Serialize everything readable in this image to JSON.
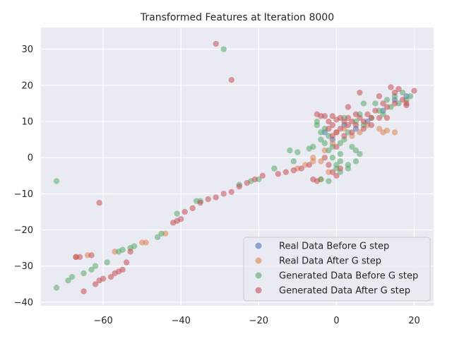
{
  "chart_data": {
    "type": "scatter",
    "title": "Transformed Features at Iteration 8000",
    "xlabel": "",
    "ylabel": "",
    "xlim": [
      -76,
      25
    ],
    "ylim": [
      -41,
      36
    ],
    "xticks": [
      -60,
      -40,
      -20,
      0,
      20
    ],
    "xtick_labels": [
      "−60",
      "−40",
      "−20",
      "0",
      "20"
    ],
    "yticks": [
      -40,
      -30,
      -20,
      -10,
      0,
      10,
      20,
      30
    ],
    "ytick_labels": [
      "−40",
      "−30",
      "−20",
      "−10",
      "0",
      "10",
      "20",
      "30"
    ],
    "grid": true,
    "legend_position": "lower-right",
    "plot_background": "#eaeaf2",
    "series": [
      {
        "name": "Real Data Before G step",
        "color": "#4c72b0",
        "points": [
          [
            -3,
            7
          ],
          [
            -1,
            5
          ],
          [
            2,
            9
          ],
          [
            5,
            8
          ],
          [
            8,
            10
          ],
          [
            12,
            13
          ],
          [
            15,
            16
          ],
          [
            18,
            17
          ]
        ]
      },
      {
        "name": "Real Data After G step",
        "color": "#dd8452",
        "points": [
          [
            -67,
            -27.5
          ],
          [
            -64,
            -27
          ],
          [
            -57,
            -26
          ],
          [
            -50,
            -23.5
          ],
          [
            -49,
            -23.5
          ],
          [
            -44,
            -21
          ],
          [
            -4,
            -6
          ],
          [
            -2,
            -4
          ],
          [
            -4,
            -1
          ],
          [
            -6,
            0
          ],
          [
            -3,
            2
          ],
          [
            -1,
            4
          ],
          [
            0,
            7
          ],
          [
            2,
            8
          ],
          [
            4,
            6
          ],
          [
            6,
            7
          ],
          [
            8,
            9
          ],
          [
            11,
            8
          ],
          [
            12,
            7
          ],
          [
            13,
            7.5
          ],
          [
            15,
            7
          ],
          [
            -10,
            -3
          ],
          [
            -8,
            -2
          ],
          [
            -6,
            -1
          ]
        ]
      },
      {
        "name": "Generated Data Before G step",
        "color": "#55a868",
        "points": [
          [
            -72,
            -6.5
          ],
          [
            -72,
            -36
          ],
          [
            -69,
            -34
          ],
          [
            -68,
            -33
          ],
          [
            -65,
            -32
          ],
          [
            -63,
            -31
          ],
          [
            -62,
            -30
          ],
          [
            -59,
            -29
          ],
          [
            -56,
            -26
          ],
          [
            -55,
            -25.5
          ],
          [
            -53,
            -25
          ],
          [
            -52,
            -24.5
          ],
          [
            -46,
            -22
          ],
          [
            -45,
            -21
          ],
          [
            -41,
            -15.5
          ],
          [
            -36,
            -12
          ],
          [
            -35,
            -12
          ],
          [
            -29,
            30
          ],
          [
            -25,
            -7.5
          ],
          [
            -22,
            -6.5
          ],
          [
            -20,
            -6
          ],
          [
            -16,
            -3
          ],
          [
            -12,
            2
          ],
          [
            -11,
            -1
          ],
          [
            -10,
            1.5
          ],
          [
            -7,
            2.5
          ],
          [
            -6,
            3
          ],
          [
            -5,
            9
          ],
          [
            -5,
            10
          ],
          [
            -4,
            7
          ],
          [
            -4,
            5
          ],
          [
            -3,
            8
          ],
          [
            -3,
            4
          ],
          [
            -2,
            6
          ],
          [
            -2,
            2
          ],
          [
            -1,
            3
          ],
          [
            -1,
            0
          ],
          [
            0,
            -2
          ],
          [
            0,
            -3
          ],
          [
            1,
            1
          ],
          [
            1,
            4
          ],
          [
            1,
            -1
          ],
          [
            2,
            5
          ],
          [
            2,
            11
          ],
          [
            3,
            7
          ],
          [
            3,
            -2
          ],
          [
            4,
            3
          ],
          [
            5,
            10
          ],
          [
            5,
            2
          ],
          [
            6,
            12
          ],
          [
            7,
            9
          ],
          [
            7,
            15
          ],
          [
            9,
            11
          ],
          [
            10,
            15
          ],
          [
            11,
            13
          ],
          [
            12,
            12
          ],
          [
            13,
            16
          ],
          [
            14,
            14
          ],
          [
            15,
            17
          ],
          [
            16,
            15
          ],
          [
            17,
            18
          ],
          [
            18,
            16
          ],
          [
            19,
            17
          ],
          [
            -4,
            -6
          ],
          [
            -2,
            -6.5
          ],
          [
            1,
            -4
          ],
          [
            3,
            -3
          ],
          [
            5,
            -1
          ],
          [
            6,
            1
          ]
        ]
      },
      {
        "name": "Generated Data After G step",
        "color": "#c44e52",
        "points": [
          [
            -61,
            -12.5
          ],
          [
            -31,
            31.5
          ],
          [
            -27,
            21.5
          ],
          [
            -67,
            -27.5
          ],
          [
            -66,
            -27.5
          ],
          [
            -65,
            -37
          ],
          [
            -63,
            -27
          ],
          [
            -62,
            -35
          ],
          [
            -61,
            -34
          ],
          [
            -60,
            -33.5
          ],
          [
            -58,
            -33
          ],
          [
            -57,
            -32
          ],
          [
            -56,
            -31.5
          ],
          [
            -55,
            -31
          ],
          [
            -54,
            -29
          ],
          [
            -53,
            -26
          ],
          [
            -42,
            -18
          ],
          [
            -41,
            -17.5
          ],
          [
            -40,
            -17
          ],
          [
            -39,
            -15
          ],
          [
            -37,
            -14
          ],
          [
            -35,
            -12.5
          ],
          [
            -33,
            -11.5
          ],
          [
            -31,
            -11
          ],
          [
            -29,
            -10
          ],
          [
            -27,
            -9.5
          ],
          [
            -25,
            -8
          ],
          [
            -23,
            -7
          ],
          [
            -21,
            -6
          ],
          [
            -19,
            -5
          ],
          [
            -15,
            -4.5
          ],
          [
            -13,
            -4
          ],
          [
            -11,
            -3.5
          ],
          [
            -9,
            -3
          ],
          [
            -7,
            -2
          ],
          [
            -6,
            -6
          ],
          [
            -5,
            -6.5
          ],
          [
            -5,
            12
          ],
          [
            -4,
            11.5
          ],
          [
            -3,
            11.5
          ],
          [
            -2,
            10
          ],
          [
            -2,
            8
          ],
          [
            -1,
            11.5
          ],
          [
            -1,
            9
          ],
          [
            -1,
            6
          ],
          [
            0,
            10.5
          ],
          [
            0,
            7
          ],
          [
            0,
            3
          ],
          [
            1,
            11
          ],
          [
            1,
            8
          ],
          [
            1,
            -3
          ],
          [
            2,
            10
          ],
          [
            2,
            6
          ],
          [
            3,
            14
          ],
          [
            3,
            11
          ],
          [
            3,
            9
          ],
          [
            4,
            10
          ],
          [
            4,
            7
          ],
          [
            5,
            12
          ],
          [
            5,
            9
          ],
          [
            6,
            18
          ],
          [
            6,
            11
          ],
          [
            7,
            10
          ],
          [
            7,
            8
          ],
          [
            8,
            12
          ],
          [
            9,
            11
          ],
          [
            9,
            9
          ],
          [
            10,
            13
          ],
          [
            11,
            11
          ],
          [
            11,
            17
          ],
          [
            12,
            15
          ],
          [
            13,
            14
          ],
          [
            13,
            11
          ],
          [
            14,
            19.5
          ],
          [
            15,
            18
          ],
          [
            15,
            15
          ],
          [
            16,
            19
          ],
          [
            17,
            16
          ],
          [
            18,
            15
          ],
          [
            18,
            14.5
          ],
          [
            20,
            18.5
          ],
          [
            -3,
            0
          ],
          [
            -2,
            -2
          ],
          [
            -1,
            -4
          ],
          [
            0,
            -5
          ]
        ]
      }
    ]
  }
}
